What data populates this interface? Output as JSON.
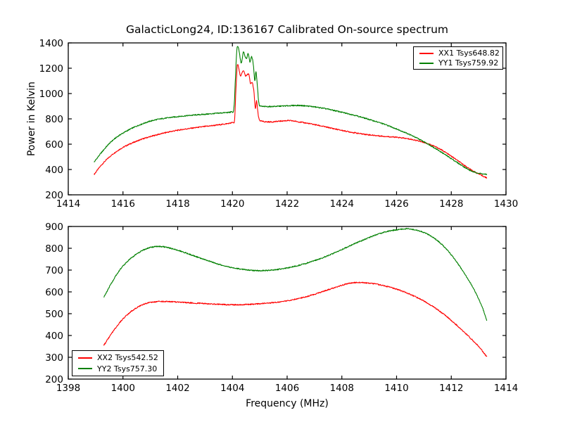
{
  "figure": {
    "title": "GalacticLong24, ID:136167 Calibrated On-source spectrum",
    "background": "#ffffff",
    "axis_color": "#000000"
  },
  "chart_data": [
    {
      "type": "line",
      "subplot": "top",
      "title": "",
      "xlabel": "",
      "ylabel": "Power in Kelvin",
      "xlim": [
        1414,
        1430
      ],
      "ylim": [
        200,
        1400
      ],
      "xticks": [
        1414,
        1416,
        1418,
        1420,
        1422,
        1424,
        1426,
        1428,
        1430
      ],
      "yticks": [
        200,
        400,
        600,
        800,
        1000,
        1200,
        1400
      ],
      "grid": false,
      "tick_direction": "in",
      "legend": {
        "position": "upper right"
      },
      "series": [
        {
          "name": "XX1",
          "label": "XX1 Tsys648.82",
          "color": "#ff0000",
          "points": [
            [
              1414.95,
              362
            ],
            [
              1415.2,
              432
            ],
            [
              1415.5,
              498
            ],
            [
              1415.8,
              548
            ],
            [
              1416.1,
              586
            ],
            [
              1416.4,
              615
            ],
            [
              1416.7,
              640
            ],
            [
              1417.0,
              660
            ],
            [
              1417.4,
              683
            ],
            [
              1417.8,
              702
            ],
            [
              1418.2,
              717
            ],
            [
              1418.6,
              729
            ],
            [
              1419.0,
              740
            ],
            [
              1419.4,
              750
            ],
            [
              1419.8,
              762
            ],
            [
              1420.0,
              772
            ],
            [
              1420.08,
              795
            ],
            [
              1420.13,
              1040
            ],
            [
              1420.18,
              1225
            ],
            [
              1420.24,
              1190
            ],
            [
              1420.3,
              1135
            ],
            [
              1420.36,
              1170
            ],
            [
              1420.42,
              1175
            ],
            [
              1420.48,
              1140
            ],
            [
              1420.54,
              1147
            ],
            [
              1420.6,
              1152
            ],
            [
              1420.66,
              1078
            ],
            [
              1420.72,
              1088
            ],
            [
              1420.78,
              1025
            ],
            [
              1420.84,
              878
            ],
            [
              1420.88,
              945
            ],
            [
              1420.93,
              855
            ],
            [
              1420.98,
              795
            ],
            [
              1421.1,
              780
            ],
            [
              1421.4,
              776
            ],
            [
              1421.8,
              783
            ],
            [
              1422.1,
              786
            ],
            [
              1422.5,
              774
            ],
            [
              1423.0,
              755
            ],
            [
              1423.5,
              732
            ],
            [
              1424.0,
              709
            ],
            [
              1424.5,
              689
            ],
            [
              1425.0,
              674
            ],
            [
              1425.5,
              663
            ],
            [
              1426.0,
              654
            ],
            [
              1426.4,
              643
            ],
            [
              1426.8,
              626
            ],
            [
              1427.2,
              600
            ],
            [
              1427.6,
              560
            ],
            [
              1428.0,
              505
            ],
            [
              1428.4,
              445
            ],
            [
              1428.8,
              388
            ],
            [
              1429.3,
              333
            ]
          ]
        },
        {
          "name": "YY1",
          "label": "YY1 Tsys759.92",
          "color": "#008000",
          "points": [
            [
              1414.95,
              460
            ],
            [
              1415.2,
              530
            ],
            [
              1415.5,
              605
            ],
            [
              1415.8,
              660
            ],
            [
              1416.1,
              700
            ],
            [
              1416.4,
              733
            ],
            [
              1416.7,
              760
            ],
            [
              1417.0,
              782
            ],
            [
              1417.3,
              797
            ],
            [
              1417.7,
              810
            ],
            [
              1418.1,
              820
            ],
            [
              1418.6,
              830
            ],
            [
              1419.1,
              838
            ],
            [
              1419.6,
              847
            ],
            [
              1419.95,
              854
            ],
            [
              1420.05,
              875
            ],
            [
              1420.1,
              1070
            ],
            [
              1420.16,
              1340
            ],
            [
              1420.22,
              1360
            ],
            [
              1420.28,
              1285
            ],
            [
              1420.33,
              1240
            ],
            [
              1420.4,
              1330
            ],
            [
              1420.46,
              1295
            ],
            [
              1420.52,
              1280
            ],
            [
              1420.58,
              1315
            ],
            [
              1420.64,
              1250
            ],
            [
              1420.7,
              1290
            ],
            [
              1420.76,
              1235
            ],
            [
              1420.82,
              1100
            ],
            [
              1420.86,
              1175
            ],
            [
              1420.92,
              1040
            ],
            [
              1420.97,
              920
            ],
            [
              1421.05,
              900
            ],
            [
              1421.3,
              897
            ],
            [
              1421.6,
              899
            ],
            [
              1422.0,
              903
            ],
            [
              1422.4,
              906
            ],
            [
              1422.8,
              900
            ],
            [
              1423.2,
              888
            ],
            [
              1423.6,
              872
            ],
            [
              1424.0,
              852
            ],
            [
              1424.4,
              832
            ],
            [
              1424.8,
              808
            ],
            [
              1425.2,
              782
            ],
            [
              1425.6,
              754
            ],
            [
              1426.0,
              720
            ],
            [
              1426.4,
              684
            ],
            [
              1426.8,
              642
            ],
            [
              1427.2,
              595
            ],
            [
              1427.6,
              542
            ],
            [
              1428.0,
              486
            ],
            [
              1428.4,
              430
            ],
            [
              1428.8,
              382
            ],
            [
              1429.3,
              360
            ]
          ]
        }
      ]
    },
    {
      "type": "line",
      "subplot": "bottom",
      "title": "",
      "xlabel": "Frequency (MHz)",
      "ylabel": "",
      "xlim": [
        1398,
        1414
      ],
      "ylim": [
        200,
        900
      ],
      "xticks": [
        1398,
        1400,
        1402,
        1404,
        1406,
        1408,
        1410,
        1412,
        1414
      ],
      "yticks": [
        200,
        300,
        400,
        500,
        600,
        700,
        800,
        900
      ],
      "grid": false,
      "tick_direction": "in",
      "legend": {
        "position": "lower left"
      },
      "series": [
        {
          "name": "XX2",
          "label": "XX2 Tsys542.52",
          "color": "#ff0000",
          "points": [
            [
              1399.3,
              355
            ],
            [
              1399.6,
              412
            ],
            [
              1399.9,
              462
            ],
            [
              1400.2,
              500
            ],
            [
              1400.5,
              527
            ],
            [
              1400.8,
              545
            ],
            [
              1401.1,
              553
            ],
            [
              1401.4,
              556
            ],
            [
              1401.8,
              555
            ],
            [
              1402.2,
              552
            ],
            [
              1402.6,
              549
            ],
            [
              1403.0,
              546
            ],
            [
              1403.5,
              543
            ],
            [
              1404.0,
              541
            ],
            [
              1404.5,
              542
            ],
            [
              1405.0,
              546
            ],
            [
              1405.5,
              551
            ],
            [
              1406.0,
              559
            ],
            [
              1406.5,
              572
            ],
            [
              1407.0,
              589
            ],
            [
              1407.5,
              610
            ],
            [
              1408.0,
              630
            ],
            [
              1408.3,
              640
            ],
            [
              1408.6,
              643
            ],
            [
              1409.0,
              640
            ],
            [
              1409.4,
              632
            ],
            [
              1409.8,
              620
            ],
            [
              1410.2,
              604
            ],
            [
              1410.6,
              583
            ],
            [
              1411.0,
              558
            ],
            [
              1411.4,
              527
            ],
            [
              1411.8,
              490
            ],
            [
              1412.2,
              447
            ],
            [
              1412.6,
              400
            ],
            [
              1413.0,
              350
            ],
            [
              1413.3,
              302
            ]
          ]
        },
        {
          "name": "YY2",
          "label": "YY2 Tsys757.30",
          "color": "#008000",
          "points": [
            [
              1399.3,
              575
            ],
            [
              1399.6,
              645
            ],
            [
              1399.9,
              703
            ],
            [
              1400.2,
              744
            ],
            [
              1400.5,
              774
            ],
            [
              1400.8,
              795
            ],
            [
              1401.1,
              806
            ],
            [
              1401.4,
              808
            ],
            [
              1401.7,
              801
            ],
            [
              1402.0,
              791
            ],
            [
              1402.4,
              774
            ],
            [
              1402.8,
              756
            ],
            [
              1403.2,
              739
            ],
            [
              1403.6,
              723
            ],
            [
              1404.0,
              711
            ],
            [
              1404.4,
              703
            ],
            [
              1404.8,
              698
            ],
            [
              1405.2,
              698
            ],
            [
              1405.6,
              702
            ],
            [
              1406.0,
              710
            ],
            [
              1406.4,
              721
            ],
            [
              1406.8,
              735
            ],
            [
              1407.2,
              752
            ],
            [
              1407.6,
              772
            ],
            [
              1408.0,
              794
            ],
            [
              1408.4,
              817
            ],
            [
              1408.8,
              839
            ],
            [
              1409.2,
              859
            ],
            [
              1409.6,
              875
            ],
            [
              1410.0,
              885
            ],
            [
              1410.4,
              889
            ],
            [
              1410.8,
              881
            ],
            [
              1411.2,
              860
            ],
            [
              1411.6,
              824
            ],
            [
              1412.0,
              770
            ],
            [
              1412.4,
              700
            ],
            [
              1412.8,
              618
            ],
            [
              1413.1,
              540
            ],
            [
              1413.3,
              468
            ]
          ]
        }
      ]
    }
  ]
}
